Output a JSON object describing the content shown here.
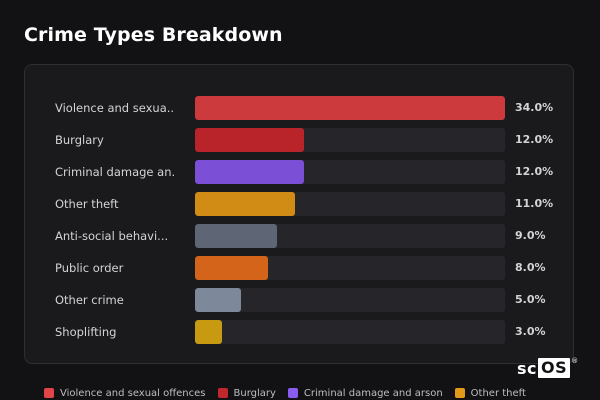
{
  "title": "Crime Types Breakdown",
  "colors": {
    "background": "#121215",
    "panel": "#1a1a1d",
    "track": "#26262a"
  },
  "chart_data": {
    "type": "bar",
    "orientation": "horizontal",
    "title": "Crime Types Breakdown",
    "categories": [
      "Violence and sexual offences",
      "Burglary",
      "Criminal damage and arson",
      "Other theft",
      "Anti-social behaviour",
      "Public order",
      "Other crime",
      "Shoplifting"
    ],
    "labels": [
      "Violence and sexua...",
      "Burglary",
      "Criminal damage an...",
      "Other theft",
      "Anti-social behavi...",
      "Public order",
      "Other crime",
      "Shoplifting"
    ],
    "values": [
      34.0,
      12.0,
      12.0,
      11.0,
      9.0,
      8.0,
      5.0,
      3.0
    ],
    "value_labels": [
      "34.0%",
      "12.0%",
      "12.0%",
      "11.0%",
      "9.0%",
      "8.0%",
      "5.0%",
      "3.0%"
    ],
    "colors": [
      "#cc3a3e",
      "#b8242a",
      "#7b4fd6",
      "#d18c16",
      "#5e6675",
      "#d4641a",
      "#7d889a",
      "#c89a12"
    ],
    "max": 34.0,
    "legend_position": "bottom"
  },
  "legend": [
    {
      "label": "Violence and sexual offences",
      "color": "#e0454a"
    },
    {
      "label": "Burglary",
      "color": "#c0282e"
    },
    {
      "label": "Criminal damage and arson",
      "color": "#8a5cf0"
    },
    {
      "label": "Other theft",
      "color": "#e39a18"
    }
  ],
  "logo": {
    "prefix": "sc",
    "suffix": "OS",
    "mark": "®"
  }
}
